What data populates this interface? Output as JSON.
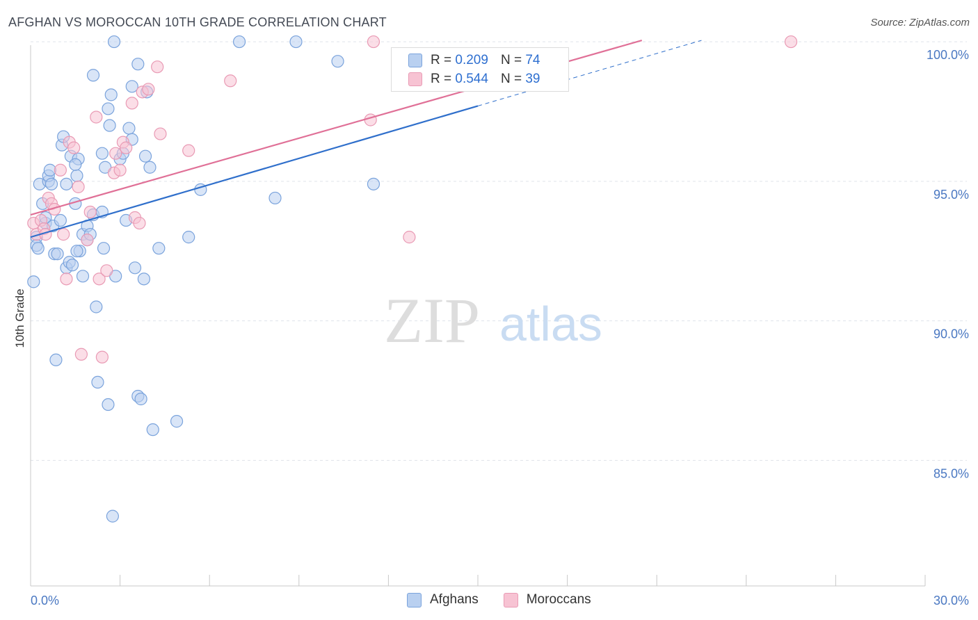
{
  "header": {
    "title": "AFGHAN VS MOROCCAN 10TH GRADE CORRELATION CHART",
    "source": "Source: ZipAtlas.com"
  },
  "watermark": {
    "zip": "ZIP",
    "atlas": "atlas"
  },
  "legend": {
    "r_label": "R = ",
    "n_label": "N = ",
    "rows": [
      {
        "name": "Afghans",
        "r": "0.209",
        "n": "74"
      },
      {
        "name": "Moroccans",
        "r": "0.544",
        "n": "39"
      }
    ]
  },
  "colors": {
    "afghan_fill": "#b9d0f0",
    "afghan_stroke": "#7aa3dc",
    "afghan_line": "#2f6fcb",
    "moroccan_fill": "#f7c3d3",
    "moroccan_stroke": "#e99ab4",
    "moroccan_line": "#e07097",
    "grid": "#dfe3ea",
    "tick_text": "#4a78c2"
  },
  "chart_data": {
    "type": "scatter",
    "title": "AFGHAN VS MOROCCAN 10TH GRADE CORRELATION CHART",
    "xlabel": "",
    "ylabel": "10th Grade",
    "xlim": [
      0,
      30
    ],
    "ylim": [
      80.5,
      100.5
    ],
    "x_tick_labels": [
      "0.0%",
      "30.0%"
    ],
    "y_ticks": [
      85,
      90,
      95,
      100
    ],
    "y_tick_labels": [
      "85.0%",
      "90.0%",
      "95.0%",
      "100.0%"
    ],
    "grid": true,
    "legend_position": "top-center",
    "series": [
      {
        "name": "Afghans",
        "r": 0.209,
        "n": 74,
        "trend": {
          "x": [
            0,
            15
          ],
          "y": [
            93.0,
            97.7
          ]
        },
        "trend_extension": {
          "x": [
            15,
            22.5
          ],
          "y": [
            97.7,
            100.05
          ]
        },
        "points": [
          {
            "x": 0.1,
            "y": 91.4
          },
          {
            "x": 0.2,
            "y": 93.0
          },
          {
            "x": 0.2,
            "y": 92.7
          },
          {
            "x": 0.25,
            "y": 92.6
          },
          {
            "x": 0.3,
            "y": 94.9
          },
          {
            "x": 0.4,
            "y": 94.2
          },
          {
            "x": 0.5,
            "y": 93.5
          },
          {
            "x": 0.5,
            "y": 93.7
          },
          {
            "x": 0.6,
            "y": 95.0
          },
          {
            "x": 0.6,
            "y": 95.2
          },
          {
            "x": 0.65,
            "y": 95.4
          },
          {
            "x": 0.7,
            "y": 94.9
          },
          {
            "x": 0.75,
            "y": 93.4
          },
          {
            "x": 0.8,
            "y": 92.4
          },
          {
            "x": 0.85,
            "y": 88.6
          },
          {
            "x": 0.9,
            "y": 92.4
          },
          {
            "x": 1.0,
            "y": 93.6
          },
          {
            "x": 1.05,
            "y": 96.3
          },
          {
            "x": 1.1,
            "y": 96.6
          },
          {
            "x": 1.2,
            "y": 94.9
          },
          {
            "x": 1.2,
            "y": 91.9
          },
          {
            "x": 1.3,
            "y": 92.1
          },
          {
            "x": 1.35,
            "y": 95.9
          },
          {
            "x": 1.4,
            "y": 92.0
          },
          {
            "x": 1.5,
            "y": 94.2
          },
          {
            "x": 1.55,
            "y": 95.2
          },
          {
            "x": 1.6,
            "y": 95.8
          },
          {
            "x": 1.65,
            "y": 92.5
          },
          {
            "x": 1.75,
            "y": 91.6
          },
          {
            "x": 1.75,
            "y": 93.1
          },
          {
            "x": 1.9,
            "y": 92.9
          },
          {
            "x": 1.9,
            "y": 93.4
          },
          {
            "x": 2.0,
            "y": 93.1
          },
          {
            "x": 2.1,
            "y": 93.8
          },
          {
            "x": 2.1,
            "y": 98.8
          },
          {
            "x": 2.2,
            "y": 90.5
          },
          {
            "x": 2.25,
            "y": 87.8
          },
          {
            "x": 2.4,
            "y": 93.9
          },
          {
            "x": 2.4,
            "y": 96.0
          },
          {
            "x": 2.45,
            "y": 92.6
          },
          {
            "x": 2.5,
            "y": 95.5
          },
          {
            "x": 2.6,
            "y": 97.6
          },
          {
            "x": 2.6,
            "y": 87.0
          },
          {
            "x": 2.65,
            "y": 97.0
          },
          {
            "x": 2.7,
            "y": 98.1
          },
          {
            "x": 2.75,
            "y": 83.0
          },
          {
            "x": 2.8,
            "y": 100.0
          },
          {
            "x": 2.85,
            "y": 91.6
          },
          {
            "x": 3.0,
            "y": 95.8
          },
          {
            "x": 3.1,
            "y": 96.0
          },
          {
            "x": 3.2,
            "y": 93.6
          },
          {
            "x": 3.3,
            "y": 96.9
          },
          {
            "x": 3.4,
            "y": 96.5
          },
          {
            "x": 3.4,
            "y": 98.4
          },
          {
            "x": 3.5,
            "y": 91.9
          },
          {
            "x": 3.6,
            "y": 99.2
          },
          {
            "x": 3.6,
            "y": 87.3
          },
          {
            "x": 3.7,
            "y": 87.2
          },
          {
            "x": 3.8,
            "y": 91.5
          },
          {
            "x": 3.85,
            "y": 95.9
          },
          {
            "x": 3.9,
            "y": 98.2
          },
          {
            "x": 4.0,
            "y": 95.5
          },
          {
            "x": 4.1,
            "y": 86.1
          },
          {
            "x": 4.3,
            "y": 92.6
          },
          {
            "x": 4.9,
            "y": 86.4
          },
          {
            "x": 5.3,
            "y": 93.0
          },
          {
            "x": 5.7,
            "y": 94.7
          },
          {
            "x": 7.0,
            "y": 100.0
          },
          {
            "x": 8.2,
            "y": 94.4
          },
          {
            "x": 8.9,
            "y": 100.0
          },
          {
            "x": 10.3,
            "y": 99.3
          },
          {
            "x": 11.5,
            "y": 94.9
          },
          {
            "x": 1.5,
            "y": 95.6
          },
          {
            "x": 1.55,
            "y": 92.5
          }
        ]
      },
      {
        "name": "Moroccans",
        "r": 0.544,
        "n": 39,
        "trend": {
          "x": [
            0,
            20.5
          ],
          "y": [
            93.8,
            100.05
          ]
        },
        "points": [
          {
            "x": 0.1,
            "y": 93.5
          },
          {
            "x": 0.2,
            "y": 93.1
          },
          {
            "x": 0.35,
            "y": 93.6
          },
          {
            "x": 0.45,
            "y": 93.3
          },
          {
            "x": 0.5,
            "y": 93.1
          },
          {
            "x": 0.6,
            "y": 94.4
          },
          {
            "x": 0.7,
            "y": 94.2
          },
          {
            "x": 0.8,
            "y": 94.0
          },
          {
            "x": 1.0,
            "y": 95.4
          },
          {
            "x": 1.1,
            "y": 93.1
          },
          {
            "x": 1.2,
            "y": 91.5
          },
          {
            "x": 1.3,
            "y": 96.4
          },
          {
            "x": 1.45,
            "y": 96.2
          },
          {
            "x": 1.6,
            "y": 94.8
          },
          {
            "x": 1.7,
            "y": 88.8
          },
          {
            "x": 1.9,
            "y": 92.9
          },
          {
            "x": 2.0,
            "y": 93.9
          },
          {
            "x": 2.2,
            "y": 97.3
          },
          {
            "x": 2.3,
            "y": 91.5
          },
          {
            "x": 2.4,
            "y": 88.7
          },
          {
            "x": 2.55,
            "y": 91.8
          },
          {
            "x": 2.8,
            "y": 95.3
          },
          {
            "x": 2.85,
            "y": 96.0
          },
          {
            "x": 3.0,
            "y": 95.4
          },
          {
            "x": 3.1,
            "y": 96.4
          },
          {
            "x": 3.2,
            "y": 96.2
          },
          {
            "x": 3.4,
            "y": 97.8
          },
          {
            "x": 3.5,
            "y": 93.7
          },
          {
            "x": 3.65,
            "y": 93.5
          },
          {
            "x": 3.75,
            "y": 98.2
          },
          {
            "x": 3.95,
            "y": 98.3
          },
          {
            "x": 4.25,
            "y": 99.1
          },
          {
            "x": 4.35,
            "y": 96.7
          },
          {
            "x": 5.3,
            "y": 96.1
          },
          {
            "x": 6.7,
            "y": 98.6
          },
          {
            "x": 11.4,
            "y": 97.2
          },
          {
            "x": 11.5,
            "y": 100.0
          },
          {
            "x": 12.7,
            "y": 93.0
          },
          {
            "x": 25.5,
            "y": 100.0
          }
        ]
      }
    ]
  }
}
